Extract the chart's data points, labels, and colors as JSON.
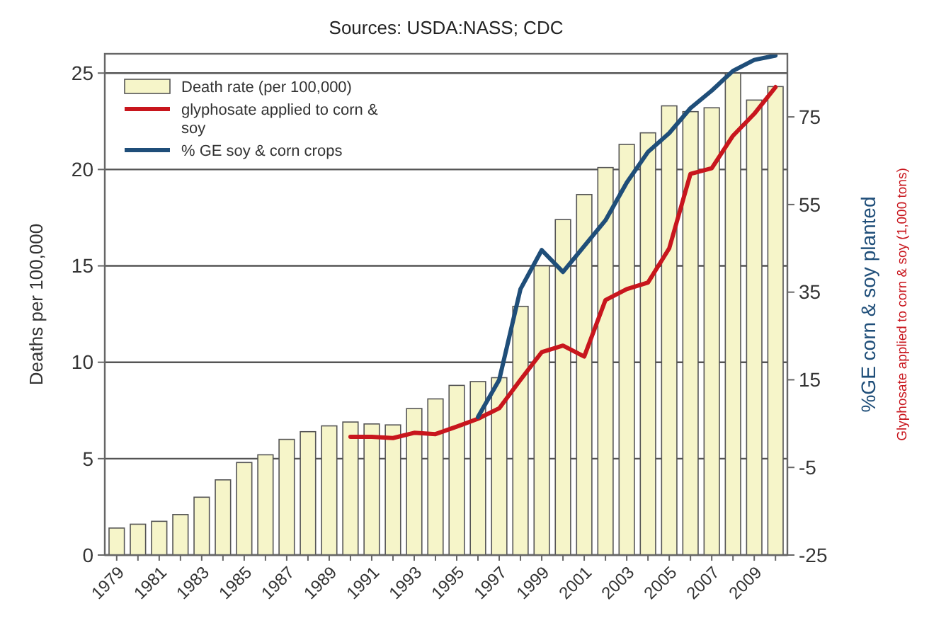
{
  "chart_data": {
    "type": "bar",
    "title": "Sources: USDA:NASS; CDC",
    "categories": [
      "1979",
      null,
      "1981",
      null,
      "1983",
      null,
      "1985",
      null,
      "1987",
      null,
      "1989",
      null,
      "1991",
      null,
      "1993",
      null,
      "1995",
      null,
      "1997",
      null,
      "1999",
      null,
      "2001",
      null,
      "2003",
      null,
      "2005",
      null,
      "2007",
      null,
      "2009",
      null
    ],
    "ylabel": "Deaths per 100,000",
    "y2label": "%GE corn & soy planted",
    "annotations": [
      "Glyphosate applied to corn & soy (1,000 tons)"
    ],
    "ylim": [
      0,
      26
    ],
    "yticks": [
      0,
      5,
      10,
      15,
      20,
      25
    ],
    "y2lim": [
      -25,
      89.4
    ],
    "y2ticks": [
      -25,
      -5,
      15,
      35,
      55,
      75
    ],
    "grid": "y",
    "legend": "top left",
    "series": [
      {
        "name": "Death rate (per 100,000)",
        "color": "#f6f5c9",
        "values": [
          1.4,
          1.6,
          1.75,
          2.1,
          3.0,
          3.9,
          4.8,
          5.2,
          6.0,
          6.4,
          6.7,
          6.9,
          6.8,
          6.75,
          7.6,
          8.1,
          8.8,
          9.0,
          9.2,
          12.9,
          15.0,
          17.4,
          18.7,
          20.1,
          21.3,
          21.9,
          23.3,
          23.0,
          23.2,
          25.0,
          23.6,
          24.3
        ]
      },
      {
        "name": "glyphosate applied to corn & soy",
        "type": "line",
        "axis": "y2",
        "color": "#c8161d",
        "values": [
          null,
          null,
          null,
          null,
          null,
          null,
          null,
          null,
          null,
          null,
          null,
          2.0,
          2.0,
          1.7,
          2.9,
          2.6,
          4.3,
          6.1,
          8.5,
          15,
          21.3,
          22.8,
          20.3,
          33.2,
          35.7,
          37.2,
          45,
          62,
          63.3,
          70.7,
          75.7,
          81.8
        ]
      },
      {
        "name": "% GE soy & corn crops",
        "type": "line",
        "axis": "y2",
        "color": "#1f4e79",
        "values": [
          null,
          null,
          null,
          null,
          null,
          null,
          null,
          null,
          null,
          null,
          null,
          null,
          null,
          null,
          null,
          null,
          null,
          6.5,
          15,
          35.7,
          44.6,
          39.6,
          45.5,
          51.4,
          60,
          67,
          71.3,
          77,
          81,
          85.5,
          88,
          89
        ]
      }
    ]
  }
}
